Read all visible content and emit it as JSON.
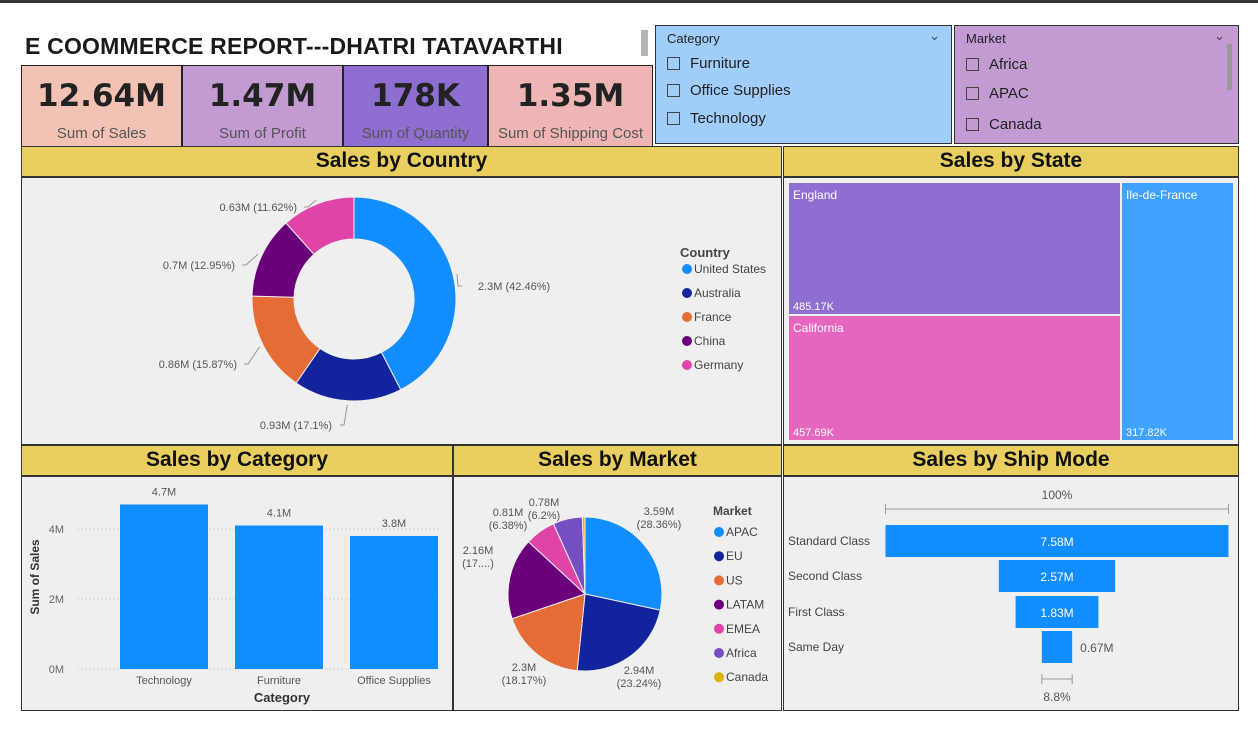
{
  "report": {
    "title": "E COOMMERCE REPORT---DHATRI TATAVARTHI"
  },
  "kpis": [
    {
      "value": "12.64M",
      "label": "Sum of Sales",
      "color": "#f2c3b5"
    },
    {
      "value": "1.47M",
      "label": "Sum of Profit",
      "color": "#c39bd3"
    },
    {
      "value": "178K",
      "label": "Sum of Quantity",
      "color": "#8e6ed0"
    },
    {
      "value": "1.35M",
      "label": "Sum of Shipping Cost",
      "color": "#efb5b5"
    }
  ],
  "slicers": {
    "category": {
      "title": "Category",
      "color": "#a0cdfa",
      "options": [
        "Furniture",
        "Office Supplies",
        "Technology"
      ]
    },
    "market": {
      "title": "Market",
      "color": "#c39bd3",
      "options": [
        "Africa",
        "APAC",
        "Canada"
      ]
    }
  },
  "panels": {
    "country_title": "Sales by Country",
    "state_title": "Sales by State",
    "category_title": "Sales by Category",
    "market_title": "Sales by Market",
    "shipmode_title": "Sales by Ship Mode"
  },
  "chart_data": [
    {
      "type": "pie",
      "title": "Sales by Country",
      "legend_title": "Country",
      "legend_placement": "right",
      "donut": true,
      "slices": [
        {
          "name": "United States",
          "value": 2.3,
          "label": "2.3M (42.46%)",
          "color": "#118dff"
        },
        {
          "name": "Australia",
          "value": 0.93,
          "label": "0.93M (17.1%)",
          "color": "#12239e"
        },
        {
          "name": "France",
          "value": 0.86,
          "label": "0.86M (15.87%)",
          "color": "#e66c37"
        },
        {
          "name": "China",
          "value": 0.7,
          "label": "0.7M (12.95%)",
          "color": "#6b007b"
        },
        {
          "name": "Germany",
          "value": 0.63,
          "label": "0.63M (11.62%)",
          "color": "#e044a7"
        }
      ]
    },
    {
      "type": "treemap",
      "title": "Sales by State",
      "items": [
        {
          "name": "England",
          "value": 485.17,
          "label": "485.17K",
          "color": "#8e6ed0"
        },
        {
          "name": "California",
          "value": 457.69,
          "label": "457.69K",
          "color": "#e466bd"
        },
        {
          "name": "Ile-de-France",
          "value": 317.82,
          "label": "317.82K",
          "color": "#3fa2ff"
        }
      ]
    },
    {
      "type": "bar",
      "title": "Sales by Category",
      "categories": [
        "Technology",
        "Furniture",
        "Office Supplies"
      ],
      "values": [
        4.7,
        4.1,
        3.8
      ],
      "data_labels": [
        "4.7M",
        "4.1M",
        "3.8M"
      ],
      "xlabel": "Category",
      "ylabel": "Sum of Sales",
      "ylim": [
        0,
        5
      ],
      "yticks": [
        "0M",
        "2M",
        "4M"
      ],
      "color": "#118dff"
    },
    {
      "type": "pie",
      "title": "Sales by Market",
      "legend_title": "Market",
      "legend_placement": "right",
      "slices": [
        {
          "name": "APAC",
          "value": 3.59,
          "label": [
            "3.59M",
            "(28.36%)"
          ],
          "color": "#118dff"
        },
        {
          "name": "EU",
          "value": 2.94,
          "label": [
            "2.94M",
            "(23.24%)"
          ],
          "color": "#12239e"
        },
        {
          "name": "US",
          "value": 2.3,
          "label": [
            "2.3M",
            "(18.17%)"
          ],
          "color": "#e66c37"
        },
        {
          "name": "LATAM",
          "value": 2.16,
          "label": [
            "2.16M",
            "(17....)"
          ],
          "color": "#6b007b"
        },
        {
          "name": "EMEA",
          "value": 0.81,
          "label": [
            "0.81M",
            "(6.38%)"
          ],
          "color": "#e044a7"
        },
        {
          "name": "Africa",
          "value": 0.78,
          "label": [
            "0.78M",
            "(6.2%)"
          ],
          "color": "#744ec2"
        },
        {
          "name": "Canada",
          "value": 0.07,
          "label": [],
          "color": "#d9b300"
        }
      ]
    },
    {
      "type": "funnel",
      "title": "Sales by Ship Mode",
      "top_label": "100%",
      "bottom_label": "8.8%",
      "stages": [
        {
          "name": "Standard Class",
          "value": 7.58,
          "label": "7.58M"
        },
        {
          "name": "Second Class",
          "value": 2.57,
          "label": "2.57M"
        },
        {
          "name": "First Class",
          "value": 1.83,
          "label": "1.83M"
        },
        {
          "name": "Same Day",
          "value": 0.67,
          "label": "0.67M"
        }
      ],
      "color": "#118dff"
    }
  ]
}
